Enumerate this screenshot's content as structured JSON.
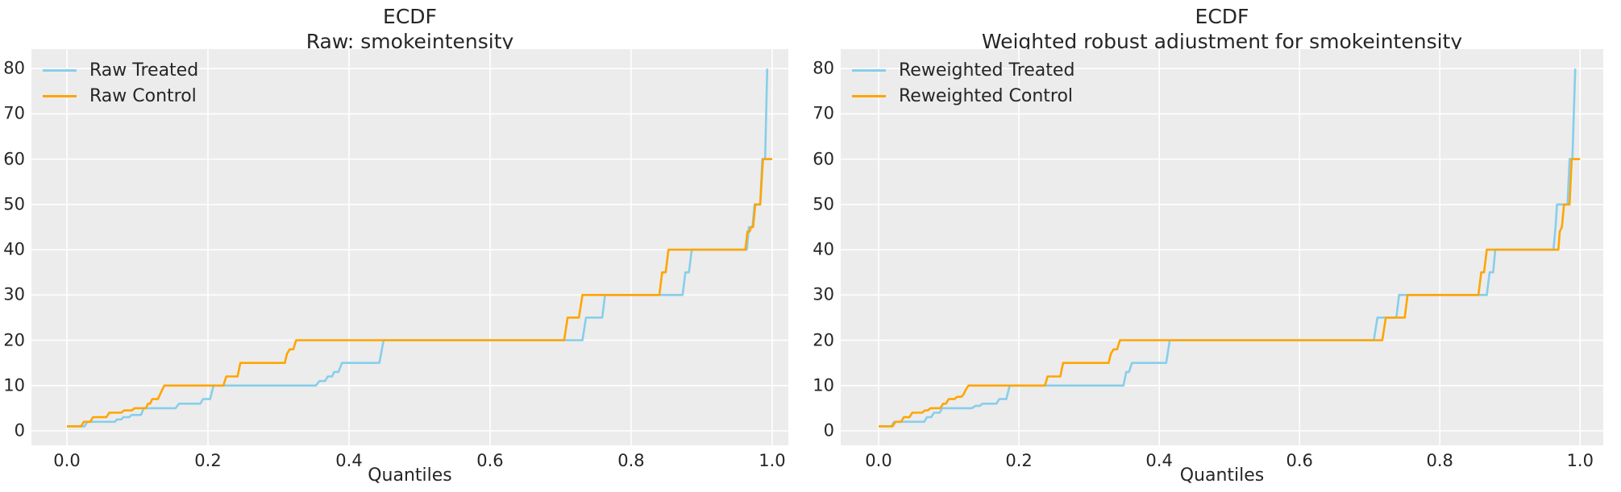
{
  "figure": {
    "background": "#ffffff",
    "axes_background": "#ececec",
    "grid_color": "#ffffff",
    "text_color": "#262626",
    "treated_color": "#87ceeb",
    "control_color": "#ffa500"
  },
  "chart_data": [
    {
      "type": "line",
      "title_line1": "ECDF",
      "title_line2": "Raw: smokeintensity",
      "xlabel": "Quantiles",
      "legend_position": "upper left",
      "grid": true,
      "xlim": [
        -0.0503,
        1.0229
      ],
      "ylim": [
        -3.2,
        84.3
      ],
      "xticks": [
        0.0,
        0.2,
        0.4,
        0.6,
        0.8,
        1.0
      ],
      "xtick_labels": [
        "0.0",
        "0.2",
        "0.4",
        "0.6",
        "0.8",
        "1.0"
      ],
      "yticks": [
        0,
        10,
        20,
        30,
        40,
        50,
        60,
        70,
        80
      ],
      "ytick_labels": [
        "0",
        "10",
        "20",
        "30",
        "40",
        "50",
        "60",
        "70",
        "80"
      ],
      "series": [
        {
          "name": "Raw Treated",
          "color": "#87ceeb",
          "points": [
            [
              0,
              1
            ],
            [
              0.025,
              1
            ],
            [
              0.029,
              2
            ],
            [
              0.068,
              2
            ],
            [
              0.071,
              2.5
            ],
            [
              0.077,
              2.5
            ],
            [
              0.08,
              3
            ],
            [
              0.088,
              3
            ],
            [
              0.092,
              3.5
            ],
            [
              0.105,
              3.5
            ],
            [
              0.109,
              5
            ],
            [
              0.154,
              5
            ],
            [
              0.159,
              6
            ],
            [
              0.189,
              6
            ],
            [
              0.193,
              7
            ],
            [
              0.203,
              7
            ],
            [
              0.208,
              10
            ],
            [
              0.353,
              10
            ],
            [
              0.358,
              11
            ],
            [
              0.366,
              11
            ],
            [
              0.37,
              12
            ],
            [
              0.376,
              12
            ],
            [
              0.379,
              13
            ],
            [
              0.385,
              13
            ],
            [
              0.39,
              15
            ],
            [
              0.443,
              15
            ],
            [
              0.449,
              20
            ],
            [
              0.731,
              20
            ],
            [
              0.736,
              25
            ],
            [
              0.759,
              25
            ],
            [
              0.763,
              30
            ],
            [
              0.873,
              30
            ],
            [
              0.877,
              35
            ],
            [
              0.882,
              35
            ],
            [
              0.886,
              40
            ],
            [
              0.964,
              40
            ],
            [
              0.967,
              45
            ],
            [
              0.972,
              45
            ],
            [
              0.975,
              50
            ],
            [
              0.983,
              50
            ],
            [
              0.986,
              60
            ],
            [
              0.99,
              60
            ],
            [
              0.993,
              80
            ]
          ]
        },
        {
          "name": "Raw Control",
          "color": "#ffa500",
          "points": [
            [
              0,
              1
            ],
            [
              0.02,
              1
            ],
            [
              0.024,
              2
            ],
            [
              0.033,
              2
            ],
            [
              0.037,
              3
            ],
            [
              0.056,
              3
            ],
            [
              0.06,
              4
            ],
            [
              0.077,
              4
            ],
            [
              0.081,
              4.5
            ],
            [
              0.092,
              4.5
            ],
            [
              0.096,
              5
            ],
            [
              0.112,
              5
            ],
            [
              0.115,
              6
            ],
            [
              0.118,
              6
            ],
            [
              0.121,
              7
            ],
            [
              0.129,
              7
            ],
            [
              0.132,
              8
            ],
            [
              0.135,
              9
            ],
            [
              0.138,
              10
            ],
            [
              0.222,
              10
            ],
            [
              0.226,
              12
            ],
            [
              0.242,
              12
            ],
            [
              0.246,
              15
            ],
            [
              0.309,
              15
            ],
            [
              0.312,
              17
            ],
            [
              0.316,
              18
            ],
            [
              0.321,
              18
            ],
            [
              0.325,
              20
            ],
            [
              0.705,
              20
            ],
            [
              0.71,
              25
            ],
            [
              0.726,
              25
            ],
            [
              0.731,
              30
            ],
            [
              0.84,
              30
            ],
            [
              0.844,
              35
            ],
            [
              0.849,
              35
            ],
            [
              0.853,
              40
            ],
            [
              0.962,
              40
            ],
            [
              0.965,
              44
            ],
            [
              0.968,
              44
            ],
            [
              0.97,
              45
            ],
            [
              0.973,
              45
            ],
            [
              0.976,
              50
            ],
            [
              0.983,
              50
            ],
            [
              0.987,
              60
            ],
            [
              1,
              60
            ]
          ]
        }
      ]
    },
    {
      "type": "line",
      "title_line1": "ECDF",
      "title_line2": "Weighted robust adjustment for smokeintensity",
      "xlabel": "Quantiles",
      "legend_position": "upper left",
      "grid": true,
      "xlim": [
        -0.054,
        1.033
      ],
      "ylim": [
        -3.2,
        84.3
      ],
      "xticks": [
        0.0,
        0.2,
        0.4,
        0.6,
        0.8,
        1.0
      ],
      "xtick_labels": [
        "0.0",
        "0.2",
        "0.4",
        "0.6",
        "0.8",
        "1.0"
      ],
      "yticks": [
        0,
        10,
        20,
        30,
        40,
        50,
        60,
        70,
        80
      ],
      "ytick_labels": [
        "0",
        "10",
        "20",
        "30",
        "40",
        "50",
        "60",
        "70",
        "80"
      ],
      "series": [
        {
          "name": "Reweighted Treated",
          "color": "#87ceeb",
          "points": [
            [
              0,
              1
            ],
            [
              0.018,
              1
            ],
            [
              0.022,
              2
            ],
            [
              0.065,
              2
            ],
            [
              0.069,
              3
            ],
            [
              0.075,
              3
            ],
            [
              0.079,
              4
            ],
            [
              0.087,
              4
            ],
            [
              0.091,
              5
            ],
            [
              0.133,
              5
            ],
            [
              0.138,
              5.5
            ],
            [
              0.144,
              5.5
            ],
            [
              0.148,
              6
            ],
            [
              0.168,
              6
            ],
            [
              0.172,
              7
            ],
            [
              0.182,
              7
            ],
            [
              0.187,
              10
            ],
            [
              0.349,
              10
            ],
            [
              0.353,
              13
            ],
            [
              0.357,
              13
            ],
            [
              0.361,
              15
            ],
            [
              0.41,
              15
            ],
            [
              0.415,
              20
            ],
            [
              0.706,
              20
            ],
            [
              0.711,
              25
            ],
            [
              0.738,
              25
            ],
            [
              0.742,
              30
            ],
            [
              0.867,
              30
            ],
            [
              0.871,
              35
            ],
            [
              0.876,
              35
            ],
            [
              0.879,
              40
            ],
            [
              0.962,
              40
            ],
            [
              0.965,
              45
            ],
            [
              0.967,
              50
            ],
            [
              0.982,
              50
            ],
            [
              0.985,
              60
            ],
            [
              0.989,
              60
            ],
            [
              0.993,
              80
            ]
          ]
        },
        {
          "name": "Reweighted Control",
          "color": "#ffa500",
          "points": [
            [
              0,
              1
            ],
            [
              0.02,
              1
            ],
            [
              0.024,
              2
            ],
            [
              0.032,
              2
            ],
            [
              0.036,
              3
            ],
            [
              0.044,
              3
            ],
            [
              0.048,
              4
            ],
            [
              0.062,
              4
            ],
            [
              0.066,
              4.5
            ],
            [
              0.07,
              4.5
            ],
            [
              0.074,
              5
            ],
            [
              0.088,
              5
            ],
            [
              0.092,
              6
            ],
            [
              0.096,
              6
            ],
            [
              0.1,
              7
            ],
            [
              0.108,
              7
            ],
            [
              0.112,
              7.5
            ],
            [
              0.118,
              7.5
            ],
            [
              0.121,
              8
            ],
            [
              0.124,
              9
            ],
            [
              0.128,
              10
            ],
            [
              0.237,
              10
            ],
            [
              0.241,
              12
            ],
            [
              0.259,
              12
            ],
            [
              0.263,
              15
            ],
            [
              0.328,
              15
            ],
            [
              0.331,
              17
            ],
            [
              0.335,
              18
            ],
            [
              0.34,
              18
            ],
            [
              0.344,
              20
            ],
            [
              0.718,
              20
            ],
            [
              0.723,
              25
            ],
            [
              0.75,
              25
            ],
            [
              0.754,
              30
            ],
            [
              0.855,
              30
            ],
            [
              0.859,
              35
            ],
            [
              0.863,
              35
            ],
            [
              0.867,
              40
            ],
            [
              0.969,
              40
            ],
            [
              0.971,
              44
            ],
            [
              0.974,
              45
            ],
            [
              0.977,
              50
            ],
            [
              0.985,
              50
            ],
            [
              0.988,
              60
            ],
            [
              1,
              60
            ]
          ]
        }
      ]
    }
  ]
}
